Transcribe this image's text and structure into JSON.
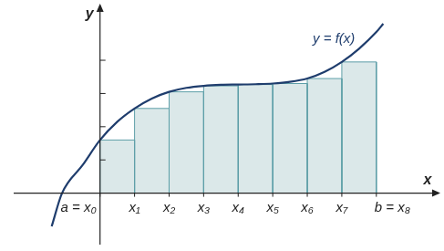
{
  "chart_data": {
    "type": "riemann",
    "xlabel": "x",
    "ylabel": "y",
    "annotations": [
      {
        "text": "y = f(x)",
        "x": 6.77,
        "y": 4.64
      }
    ],
    "curve": {
      "x": [
        -1.4,
        -1.1,
        -0.5,
        0,
        0.5,
        1,
        1.5,
        2,
        2.5,
        3,
        3.5,
        4,
        4.5,
        5,
        5.5,
        6,
        6.5,
        7,
        7.5,
        8,
        8.2
      ],
      "values": [
        -1.0,
        0,
        0.85,
        1.6,
        2.15,
        2.55,
        2.85,
        3.05,
        3.17,
        3.23,
        3.26,
        3.27,
        3.28,
        3.3,
        3.35,
        3.45,
        3.65,
        3.95,
        4.35,
        4.85,
        5.1
      ],
      "color": "#1f3d6d"
    },
    "bins": [
      0,
      1,
      2,
      3,
      4,
      5,
      6,
      7,
      8
    ],
    "values": [
      1.6,
      2.55,
      3.05,
      3.23,
      3.27,
      3.3,
      3.45,
      3.95
    ],
    "color": "#dbe8e9",
    "xlim": [
      -2.5,
      9.8
    ],
    "ylim": [
      -1.55,
      5.65
    ],
    "xticks": [
      {
        "value": 0,
        "label": "a = x₀"
      },
      {
        "value": 1,
        "label": "x₁"
      },
      {
        "value": 2,
        "label": "x₂"
      },
      {
        "value": 3,
        "label": "x₃"
      },
      {
        "value": 4,
        "label": "x₄"
      },
      {
        "value": 5,
        "label": "x₅"
      },
      {
        "value": 6,
        "label": "x₆"
      },
      {
        "value": 7,
        "label": "x₇"
      },
      {
        "value": 8,
        "label": "b = x₈"
      }
    ],
    "yticks": [
      1,
      2,
      3,
      4
    ],
    "tick_labels": "x",
    "grid": false
  }
}
